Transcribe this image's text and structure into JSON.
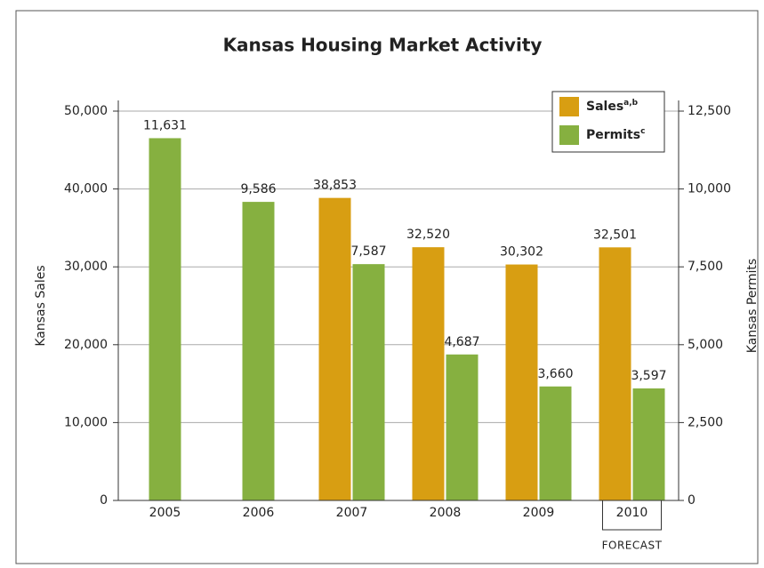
{
  "chart_data": {
    "type": "bar",
    "title": "Kansas Housing Market Activity",
    "categories": [
      "2005",
      "2006",
      "2007",
      "2008",
      "2009",
      "2010"
    ],
    "series": [
      {
        "name": "Sales",
        "superscript": "a,b",
        "color": "#d89e12",
        "values": [
          null,
          null,
          38853,
          32520,
          30302,
          32501
        ],
        "value_labels": [
          null,
          null,
          "38,853",
          "32,520",
          "30,302",
          "32,501"
        ]
      },
      {
        "name": "Permits",
        "superscript": "c",
        "color": "#86b040",
        "axis": "y2",
        "values": [
          11631,
          9586,
          7587,
          4687,
          3660,
          3597
        ],
        "value_labels": [
          "11,631",
          "9,586",
          "7,587",
          "4,687",
          "3,660",
          "3,597"
        ]
      }
    ],
    "ylabel": "Kansas Sales",
    "y2label": "Kansas Permits",
    "ylim": [
      0,
      50000
    ],
    "yticks": [
      0,
      {
        "value": 10000,
        "label": "10,000"
      },
      {
        "value": 20000,
        "label": "20,000"
      },
      {
        "value": 30000,
        "label": "30,000"
      },
      {
        "value": 40000,
        "label": "40,000"
      },
      {
        "value": 50000,
        "label": "50,000"
      }
    ],
    "y2lim": [
      0,
      12500
    ],
    "y2ticks": [
      0,
      {
        "value": 2500,
        "label": "2,500"
      },
      {
        "value": 5000,
        "label": "5,000"
      },
      {
        "value": 7500,
        "label": "7,500"
      },
      {
        "value": 10000,
        "label": "10,000"
      },
      {
        "value": 12500,
        "label": "12,500"
      }
    ],
    "grid": true,
    "legend": "upper right",
    "annotation": "FORECAST"
  }
}
